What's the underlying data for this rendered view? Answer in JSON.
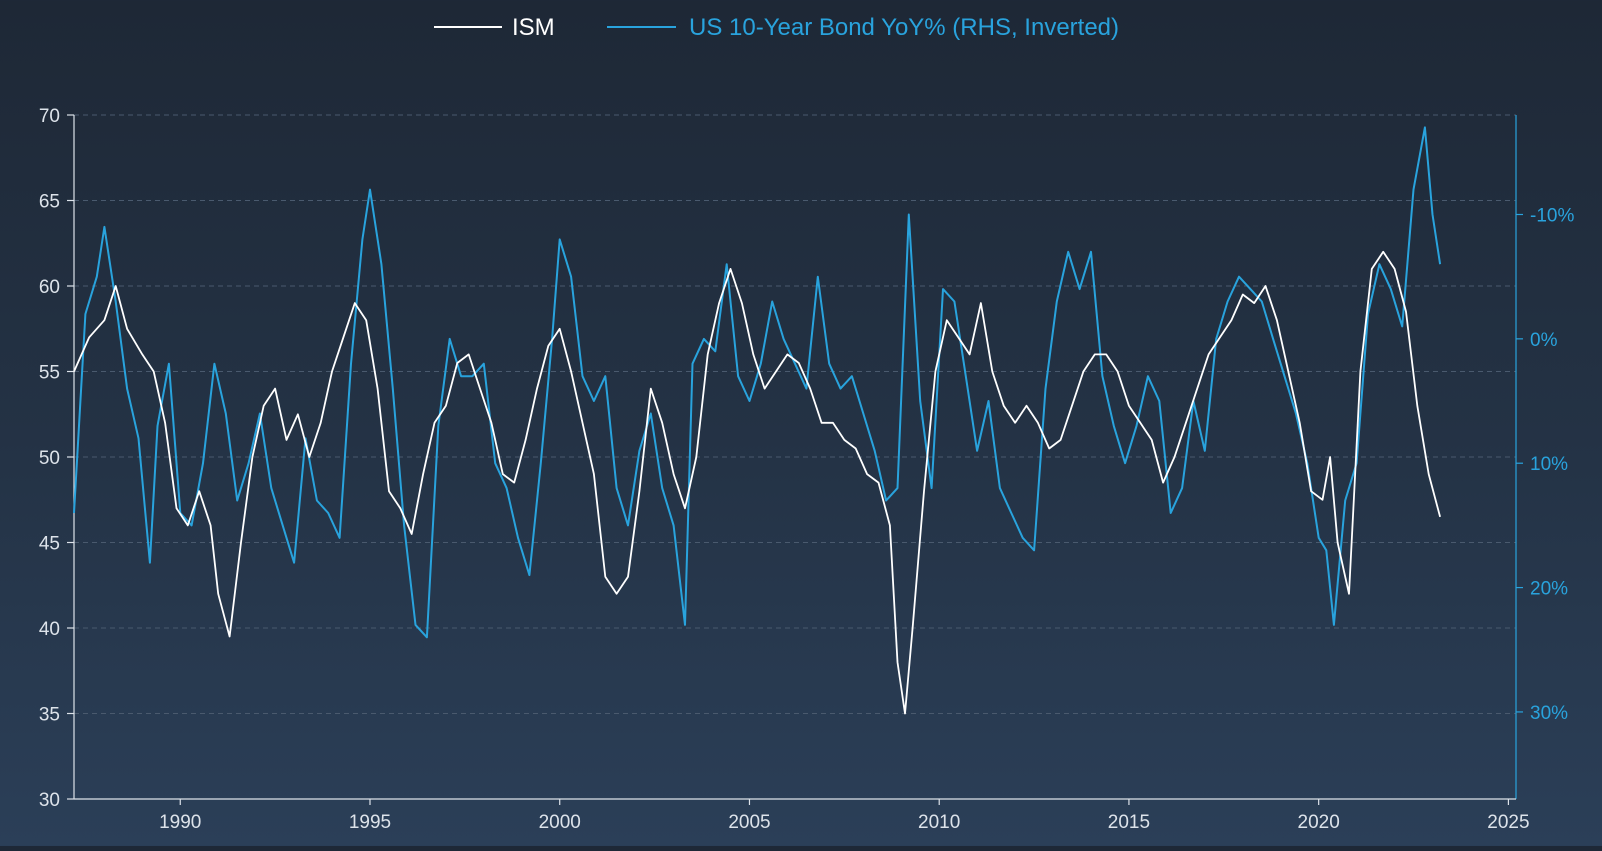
{
  "chart_data": {
    "type": "line",
    "title": "",
    "xlabel": "",
    "ylabel": "",
    "xlim": [
      1987.2,
      2025.2
    ],
    "ylim_left": [
      30,
      70
    ],
    "ylim_right": [
      -18,
      37
    ],
    "right_axis_inverted": true,
    "x_ticks": [
      1990,
      1995,
      2000,
      2005,
      2010,
      2015,
      2020,
      2025
    ],
    "x_tick_labels": [
      "1990",
      "1995",
      "2000",
      "2005",
      "2010",
      "2015",
      "2020",
      "2025"
    ],
    "y_left_ticks": [
      30,
      35,
      40,
      45,
      50,
      55,
      60,
      65,
      70
    ],
    "y_left_tick_labels": [
      "30",
      "35",
      "40",
      "45",
      "50",
      "55",
      "60",
      "65",
      "70"
    ],
    "y_right_ticks": [
      -10,
      0,
      10,
      20,
      30
    ],
    "y_right_tick_labels": [
      "-10%",
      "0%",
      "10%",
      "20%",
      "30%"
    ],
    "grid": "horizontal-dashed",
    "legend_position": "top-center",
    "colors": {
      "ism": "#ffffff",
      "bond": "#29a3dd",
      "axis_left": "#dde3ea",
      "axis_right": "#29a3dd"
    },
    "series": [
      {
        "name": "ISM",
        "axis": "left",
        "x": [
          1987.2,
          1987.6,
          1988.0,
          1988.3,
          1988.6,
          1989.0,
          1989.3,
          1989.6,
          1989.9,
          1990.2,
          1990.5,
          1990.8,
          1991.0,
          1991.3,
          1991.6,
          1991.9,
          1992.2,
          1992.5,
          1992.8,
          1993.1,
          1993.4,
          1993.7,
          1994.0,
          1994.3,
          1994.6,
          1994.9,
          1995.2,
          1995.5,
          1995.8,
          1996.1,
          1996.4,
          1996.7,
          1997.0,
          1997.3,
          1997.6,
          1997.9,
          1998.2,
          1998.5,
          1998.8,
          1999.1,
          1999.4,
          1999.7,
          2000.0,
          2000.3,
          2000.6,
          2000.9,
          2001.2,
          2001.5,
          2001.8,
          2002.1,
          2002.4,
          2002.7,
          2003.0,
          2003.3,
          2003.6,
          2003.9,
          2004.2,
          2004.5,
          2004.8,
          2005.1,
          2005.4,
          2005.7,
          2006.0,
          2006.3,
          2006.6,
          2006.9,
          2007.2,
          2007.5,
          2007.8,
          2008.1,
          2008.4,
          2008.7,
          2008.9,
          2009.1,
          2009.3,
          2009.6,
          2009.9,
          2010.2,
          2010.5,
          2010.8,
          2011.1,
          2011.4,
          2011.7,
          2012.0,
          2012.3,
          2012.6,
          2012.9,
          2013.2,
          2013.5,
          2013.8,
          2014.1,
          2014.4,
          2014.7,
          2015.0,
          2015.3,
          2015.6,
          2015.9,
          2016.2,
          2016.5,
          2016.8,
          2017.1,
          2017.4,
          2017.7,
          2018.0,
          2018.3,
          2018.6,
          2018.9,
          2019.2,
          2019.5,
          2019.8,
          2020.1,
          2020.3,
          2020.5,
          2020.8,
          2021.1,
          2021.4,
          2021.7,
          2022.0,
          2022.3,
          2022.6,
          2022.9,
          2023.2
        ],
        "values": [
          55,
          57,
          58,
          60,
          57.5,
          56,
          55,
          52,
          47,
          46,
          48,
          46,
          42,
          39.5,
          45,
          50,
          53,
          54,
          51,
          52.5,
          50,
          52,
          55,
          57,
          59,
          58,
          54,
          48,
          47,
          45.5,
          49,
          52,
          53,
          55.5,
          56,
          54,
          52,
          49,
          48.5,
          51,
          54,
          56.5,
          57.5,
          55,
          52,
          49,
          43,
          42,
          43,
          48,
          54,
          52,
          49,
          47,
          50,
          56,
          59,
          61,
          59,
          56,
          54,
          55,
          56,
          55.5,
          54,
          52,
          52,
          51,
          50.5,
          49,
          48.5,
          46,
          38,
          35,
          40,
          48,
          55,
          58,
          57,
          56,
          59,
          55,
          53,
          52,
          53,
          52,
          50.5,
          51,
          53,
          55,
          56,
          56,
          55,
          53,
          52,
          51,
          48.5,
          50,
          52,
          54,
          56,
          57,
          58,
          59.5,
          59,
          60,
          58,
          55,
          52,
          48,
          47.5,
          50,
          45,
          42,
          55,
          61,
          62,
          61,
          58.5,
          53,
          49,
          46.5
        ]
      },
      {
        "name": "US 10-Year Bond YoY% (RHS, Inverted)",
        "axis": "right",
        "x": [
          1987.2,
          1987.5,
          1987.8,
          1988.0,
          1988.3,
          1988.6,
          1988.9,
          1989.2,
          1989.4,
          1989.7,
          1990.0,
          1990.3,
          1990.6,
          1990.9,
          1991.2,
          1991.5,
          1991.8,
          1992.1,
          1992.4,
          1992.7,
          1993.0,
          1993.3,
          1993.6,
          1993.9,
          1994.2,
          1994.5,
          1994.8,
          1995.0,
          1995.3,
          1995.6,
          1995.9,
          1996.2,
          1996.5,
          1996.8,
          1997.1,
          1997.4,
          1997.7,
          1998.0,
          1998.3,
          1998.6,
          1998.9,
          1999.2,
          1999.5,
          1999.8,
          2000.0,
          2000.3,
          2000.6,
          2000.9,
          2001.2,
          2001.5,
          2001.8,
          2002.1,
          2002.4,
          2002.7,
          2003.0,
          2003.3,
          2003.5,
          2003.8,
          2004.1,
          2004.4,
          2004.7,
          2005.0,
          2005.3,
          2005.6,
          2005.9,
          2006.2,
          2006.5,
          2006.8,
          2007.1,
          2007.4,
          2007.7,
          2008.0,
          2008.3,
          2008.6,
          2008.9,
          2009.2,
          2009.5,
          2009.8,
          2010.1,
          2010.4,
          2010.7,
          2011.0,
          2011.3,
          2011.6,
          2011.9,
          2012.2,
          2012.5,
          2012.8,
          2013.1,
          2013.4,
          2013.7,
          2014.0,
          2014.3,
          2014.6,
          2014.9,
          2015.2,
          2015.5,
          2015.8,
          2016.1,
          2016.4,
          2016.7,
          2017.0,
          2017.3,
          2017.6,
          2017.9,
          2018.2,
          2018.5,
          2018.8,
          2019.1,
          2019.4,
          2019.7,
          2020.0,
          2020.2,
          2020.4,
          2020.7,
          2021.0,
          2021.3,
          2021.6,
          2021.9,
          2022.2,
          2022.5,
          2022.8,
          2023.0,
          2023.2
        ],
        "values": [
          14,
          -2,
          -5,
          -9,
          -3,
          4,
          8,
          18,
          7,
          2,
          14,
          15,
          10,
          2,
          6,
          13,
          10,
          6,
          12,
          15,
          18,
          8,
          13,
          14,
          16,
          2,
          -8,
          -12,
          -6,
          4,
          15,
          23,
          24,
          7,
          0,
          3,
          3,
          2,
          10,
          12,
          16,
          19,
          10,
          0,
          -8,
          -5,
          3,
          5,
          3,
          12,
          15,
          9,
          6,
          12,
          15,
          23,
          2,
          0,
          1,
          -6,
          3,
          5,
          2,
          -3,
          0,
          2,
          4,
          -5,
          2,
          4,
          3,
          6,
          9,
          13,
          12,
          -10,
          5,
          12,
          -4,
          -3,
          3,
          9,
          5,
          12,
          14,
          16,
          17,
          4,
          -3,
          -7,
          -4,
          -7,
          3,
          7,
          10,
          7,
          3,
          5,
          14,
          12,
          5,
          9,
          0,
          -3,
          -5,
          -4,
          -3,
          0,
          3,
          6,
          10,
          16,
          17,
          23,
          13,
          10,
          -2,
          -6,
          -4,
          -1,
          -12,
          -17,
          -10,
          -6
        ]
      }
    ]
  },
  "legend": {
    "ism_label": "ISM",
    "bond_label": "US 10-Year Bond YoY% (RHS, Inverted)"
  }
}
